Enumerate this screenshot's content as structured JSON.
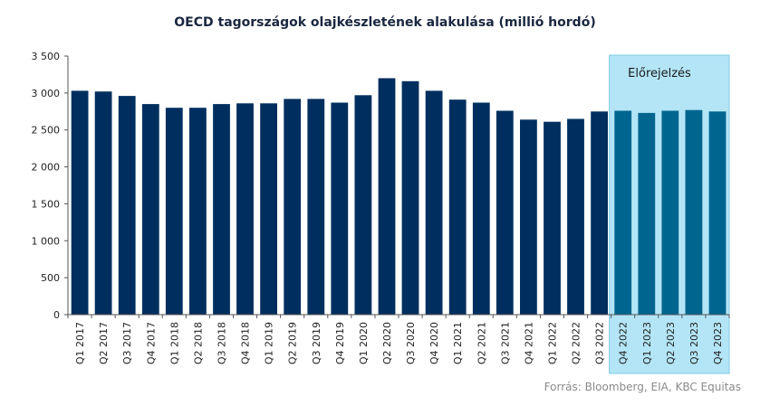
{
  "chart_data": {
    "type": "bar",
    "title": "OECD tagországok olajkészletének alakulása (millió hordó)",
    "source": "Forrás: Bloomberg,  EIA, KBC Equitas",
    "forecast_label": "Előrejelzés",
    "ylim": [
      0,
      3500
    ],
    "yticks": [
      0,
      500,
      1000,
      1500,
      2000,
      2500,
      3000,
      3500
    ],
    "ytick_labels": [
      "0",
      "500",
      "1 000",
      "1 500",
      "2 000",
      "2 500",
      "3 000",
      "3 500"
    ],
    "categories": [
      "Q1 2017",
      "Q2 2017",
      "Q3 2017",
      "Q4 2017",
      "Q1 2018",
      "Q2 2018",
      "Q3 2018",
      "Q4 2018",
      "Q1 2019",
      "Q2 2019",
      "Q3 2019",
      "Q4 2019",
      "Q1 2020",
      "Q2 2020",
      "Q3 2020",
      "Q4 2020",
      "Q1 2021",
      "Q2 2021",
      "Q3 2021",
      "Q4 2021",
      "Q1 2022",
      "Q2 2022",
      "Q3 2022",
      "Q4 2022",
      "Q1 2023",
      "Q2 2023",
      "Q3 2023",
      "Q4 2023"
    ],
    "values": [
      3030,
      3020,
      2960,
      2850,
      2800,
      2800,
      2850,
      2860,
      2860,
      2920,
      2920,
      2870,
      2970,
      3200,
      3160,
      3030,
      2910,
      2870,
      2760,
      2640,
      2610,
      2650,
      2750,
      2760,
      2730,
      2760,
      2770,
      2750
    ],
    "forecast_start_index": 23,
    "grid": "none",
    "colors": {
      "actual": "#002f5f",
      "forecast": "#00668f",
      "forecast_band": "#b3e5f6",
      "forecast_band_border": "#7fcbe6"
    }
  }
}
